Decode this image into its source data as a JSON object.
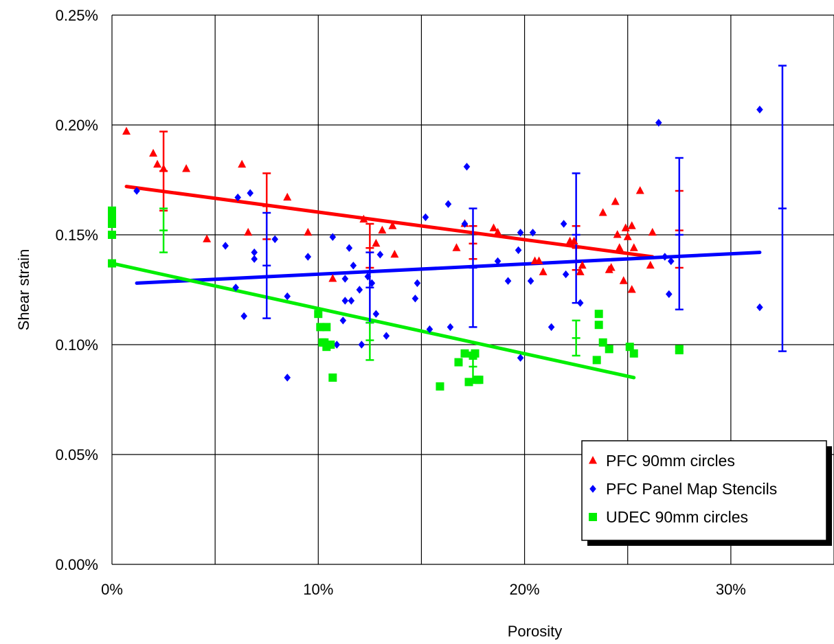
{
  "chart_data": {
    "type": "scatter",
    "xlabel": "Porosity",
    "ylabel": "Shear strain",
    "xlim": [
      0,
      0.35
    ],
    "ylim": [
      0,
      0.0025
    ],
    "x_ticks": [
      0,
      0.05,
      0.1,
      0.15,
      0.2,
      0.25,
      0.3,
      0.35
    ],
    "x_tick_labels": [
      "0%",
      "10%",
      "20%",
      "30%"
    ],
    "x_tick_label_values": [
      0,
      0.1,
      0.2,
      0.3
    ],
    "y_ticks": [
      0,
      0.0005,
      0.001,
      0.0015,
      0.002,
      0.0025
    ],
    "y_tick_labels": [
      "0.00%",
      "0.05%",
      "0.10%",
      "0.15%",
      "0.20%",
      "0.25%"
    ],
    "grid": true,
    "legend_position": "bottom-right",
    "series": [
      {
        "name": "PFC 90mm circles",
        "color": "#ff0000",
        "marker": "triangle",
        "points": [
          [
            0.007,
            0.00197
          ],
          [
            0.02,
            0.00187
          ],
          [
            0.022,
            0.00182
          ],
          [
            0.025,
            0.0018
          ],
          [
            0.036,
            0.0018
          ],
          [
            0.046,
            0.00148
          ],
          [
            0.063,
            0.00182
          ],
          [
            0.066,
            0.00151
          ],
          [
            0.085,
            0.00167
          ],
          [
            0.095,
            0.00151
          ],
          [
            0.107,
            0.0013
          ],
          [
            0.122,
            0.00157
          ],
          [
            0.128,
            0.00146
          ],
          [
            0.131,
            0.00152
          ],
          [
            0.136,
            0.00154
          ],
          [
            0.137,
            0.00141
          ],
          [
            0.167,
            0.00144
          ],
          [
            0.171,
            0.00155
          ],
          [
            0.185,
            0.00153
          ],
          [
            0.187,
            0.00151
          ],
          [
            0.205,
            0.00138
          ],
          [
            0.207,
            0.00138
          ],
          [
            0.209,
            0.00133
          ],
          [
            0.222,
            0.00147
          ],
          [
            0.224,
            0.00147
          ],
          [
            0.227,
            0.00133
          ],
          [
            0.228,
            0.00136
          ],
          [
            0.238,
            0.0016
          ],
          [
            0.241,
            0.00134
          ],
          [
            0.242,
            0.00135
          ],
          [
            0.244,
            0.00165
          ],
          [
            0.245,
            0.0015
          ],
          [
            0.246,
            0.00144
          ],
          [
            0.248,
            0.00129
          ],
          [
            0.249,
            0.00153
          ],
          [
            0.25,
            0.00149
          ],
          [
            0.252,
            0.00154
          ],
          [
            0.252,
            0.00125
          ],
          [
            0.253,
            0.00144
          ],
          [
            0.256,
            0.0017
          ],
          [
            0.261,
            0.00136
          ],
          [
            0.262,
            0.00151
          ]
        ],
        "trend": [
          [
            0.007,
            0.00172
          ],
          [
            0.262,
            0.0014
          ]
        ],
        "error_bars": [
          {
            "x": 0.025,
            "y": 0.00179,
            "low": 0.00161,
            "high": 0.00197
          },
          {
            "x": 0.075,
            "y": 0.00163,
            "low": 0.00148,
            "high": 0.00178
          },
          {
            "x": 0.125,
            "y": 0.00144,
            "low": 0.00135,
            "high": 0.00155
          },
          {
            "x": 0.175,
            "y": 0.00146,
            "low": 0.00139,
            "high": 0.00154
          },
          {
            "x": 0.225,
            "y": 0.00144,
            "low": 0.00134,
            "high": 0.00154
          },
          {
            "x": 0.275,
            "y": 0.00152,
            "low": 0.00135,
            "high": 0.0017
          }
        ]
      },
      {
        "name": "PFC Panel Map Stencils",
        "color": "#0000ff",
        "marker": "diamond",
        "points": [
          [
            0.012,
            0.0017
          ],
          [
            0.055,
            0.00145
          ],
          [
            0.06,
            0.00126
          ],
          [
            0.061,
            0.00167
          ],
          [
            0.064,
            0.00113
          ],
          [
            0.067,
            0.00169
          ],
          [
            0.069,
            0.00142
          ],
          [
            0.069,
            0.00139
          ],
          [
            0.079,
            0.00148
          ],
          [
            0.085,
            0.00085
          ],
          [
            0.085,
            0.00122
          ],
          [
            0.095,
            0.0014
          ],
          [
            0.107,
            0.00149
          ],
          [
            0.109,
            0.001
          ],
          [
            0.112,
            0.00111
          ],
          [
            0.113,
            0.0012
          ],
          [
            0.113,
            0.0013
          ],
          [
            0.115,
            0.00144
          ],
          [
            0.116,
            0.0012
          ],
          [
            0.117,
            0.00136
          ],
          [
            0.12,
            0.00125
          ],
          [
            0.121,
            0.001
          ],
          [
            0.124,
            0.00131
          ],
          [
            0.126,
            0.00128
          ],
          [
            0.128,
            0.00114
          ],
          [
            0.13,
            0.00141
          ],
          [
            0.133,
            0.00104
          ],
          [
            0.147,
            0.00121
          ],
          [
            0.148,
            0.00128
          ],
          [
            0.152,
            0.00158
          ],
          [
            0.154,
            0.00107
          ],
          [
            0.163,
            0.00164
          ],
          [
            0.164,
            0.00108
          ],
          [
            0.171,
            0.00155
          ],
          [
            0.172,
            0.00181
          ],
          [
            0.187,
            0.00138
          ],
          [
            0.192,
            0.00129
          ],
          [
            0.197,
            0.00143
          ],
          [
            0.198,
            0.00151
          ],
          [
            0.198,
            0.00094
          ],
          [
            0.203,
            0.00129
          ],
          [
            0.204,
            0.00151
          ],
          [
            0.213,
            0.00108
          ],
          [
            0.219,
            0.00155
          ],
          [
            0.22,
            0.00132
          ],
          [
            0.227,
            0.00119
          ],
          [
            0.265,
            0.00201
          ],
          [
            0.268,
            0.0014
          ],
          [
            0.27,
            0.00123
          ],
          [
            0.271,
            0.00138
          ],
          [
            0.314,
            0.00207
          ],
          [
            0.314,
            0.00117
          ]
        ],
        "trend": [
          [
            0.012,
            0.00128
          ],
          [
            0.314,
            0.00142
          ]
        ],
        "error_bars": [
          {
            "x": 0.075,
            "y": 0.00136,
            "low": 0.00112,
            "high": 0.0016
          },
          {
            "x": 0.125,
            "y": 0.00126,
            "low": 0.0011,
            "high": 0.00142
          },
          {
            "x": 0.175,
            "y": 0.00135,
            "low": 0.00108,
            "high": 0.00162
          },
          {
            "x": 0.225,
            "y": 0.0015,
            "low": 0.00119,
            "high": 0.00178
          },
          {
            "x": 0.275,
            "y": 0.0015,
            "low": 0.00116,
            "high": 0.00185
          },
          {
            "x": 0.325,
            "y": 0.00162,
            "low": 0.00097,
            "high": 0.00227
          }
        ]
      },
      {
        "name": "UDEC 90mm circles",
        "color": "#00ee00",
        "marker": "square",
        "points": [
          [
            0.0,
            0.00161
          ],
          [
            0.0,
            0.00158
          ],
          [
            0.0,
            0.00155
          ],
          [
            0.0,
            0.0015
          ],
          [
            0.0,
            0.00137
          ],
          [
            0.1,
            0.00114
          ],
          [
            0.101,
            0.00108
          ],
          [
            0.102,
            0.00101
          ],
          [
            0.103,
            0.00101
          ],
          [
            0.104,
            0.00108
          ],
          [
            0.104,
            0.00099
          ],
          [
            0.106,
            0.001
          ],
          [
            0.107,
            0.00085
          ],
          [
            0.159,
            0.00081
          ],
          [
            0.168,
            0.00092
          ],
          [
            0.171,
            0.00096
          ],
          [
            0.173,
            0.00083
          ],
          [
            0.175,
            0.00095
          ],
          [
            0.176,
            0.00096
          ],
          [
            0.177,
            0.00084
          ],
          [
            0.178,
            0.00084
          ],
          [
            0.235,
            0.00093
          ],
          [
            0.236,
            0.00109
          ],
          [
            0.236,
            0.00114
          ],
          [
            0.238,
            0.00101
          ],
          [
            0.241,
            0.00098
          ],
          [
            0.251,
            0.00099
          ],
          [
            0.253,
            0.00096
          ],
          [
            0.275,
            0.00098
          ]
        ],
        "trend": [
          [
            0.0,
            0.00137
          ],
          [
            0.253,
            0.00085
          ]
        ],
        "error_bars": [
          {
            "x": 0.025,
            "y": 0.00152,
            "low": 0.00142,
            "high": 0.00162
          },
          {
            "x": 0.125,
            "y": 0.00102,
            "low": 0.00093,
            "high": 0.0011
          },
          {
            "x": 0.175,
            "y": 0.0009,
            "low": 0.00084,
            "high": 0.00096
          },
          {
            "x": 0.225,
            "y": 0.00103,
            "low": 0.00095,
            "high": 0.00111
          },
          {
            "x": 0.275,
            "y": 0.00097,
            "low": 0.00096,
            "high": 0.00099
          }
        ]
      }
    ]
  }
}
